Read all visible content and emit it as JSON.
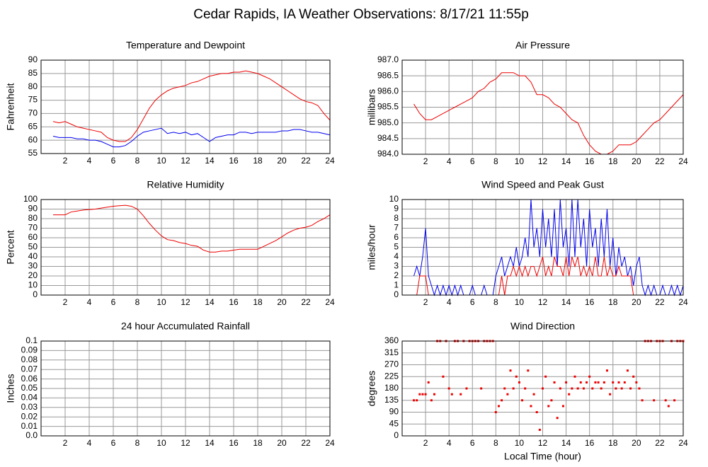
{
  "title": "Cedar Rapids, IA Weather Observations: 8/17/21 11:55p",
  "chart_data": [
    {
      "type": "line",
      "title": "Temperature and Dewpoint",
      "ylabel": "Fahrenheit",
      "x": [
        1,
        1.5,
        2,
        2.5,
        3,
        3.5,
        4,
        4.5,
        5,
        5.5,
        6,
        6.5,
        7,
        7.5,
        8,
        8.5,
        9,
        9.5,
        10,
        10.5,
        11,
        11.5,
        12,
        12.5,
        13,
        13.5,
        14,
        14.5,
        15,
        15.5,
        16,
        16.5,
        17,
        17.5,
        18,
        18.5,
        19,
        19.5,
        20,
        20.5,
        21,
        21.5,
        22,
        22.5,
        23,
        23.5,
        24
      ],
      "series": [
        {
          "color": "#ee0000",
          "values": [
            67,
            66.5,
            67,
            66,
            65,
            64.5,
            64,
            63.5,
            63,
            61,
            60,
            59.5,
            59.5,
            61,
            64,
            68,
            72,
            75,
            77,
            78.5,
            79.5,
            80,
            80.5,
            81.5,
            82,
            83,
            84,
            84.5,
            85,
            85,
            85.5,
            85.5,
            86,
            85.5,
            85,
            84,
            83,
            81.5,
            80,
            78.5,
            77,
            75.5,
            74.5,
            74,
            73,
            70,
            67.5
          ]
        },
        {
          "color": "#0000ee",
          "values": [
            61.5,
            61,
            61,
            61,
            60.5,
            60.5,
            60,
            60,
            59.5,
            58.5,
            57.5,
            57.5,
            58,
            59.5,
            61.5,
            63,
            63.5,
            64,
            64.5,
            62.5,
            63,
            62.5,
            63,
            62,
            62.5,
            61,
            59.5,
            61,
            61.5,
            62,
            62,
            63,
            63,
            62.5,
            63,
            63,
            63,
            63,
            63.5,
            63.5,
            64,
            64,
            63.5,
            63,
            63,
            62.5,
            62
          ]
        }
      ],
      "xlim": [
        0,
        24
      ],
      "xticks": [
        2,
        4,
        6,
        8,
        10,
        12,
        14,
        16,
        18,
        20,
        22,
        24
      ],
      "ylim": [
        55,
        90
      ],
      "yticks": [
        55,
        60,
        65,
        70,
        75,
        80,
        85,
        90
      ],
      "grid": true
    },
    {
      "type": "line",
      "title": "Air Pressure",
      "ylabel": "millibars",
      "x": [
        1,
        1.5,
        2,
        2.5,
        3,
        3.5,
        4,
        4.5,
        5,
        5.5,
        6,
        6.5,
        7,
        7.5,
        8,
        8.5,
        9,
        9.5,
        10,
        10.5,
        11,
        11.5,
        12,
        12.5,
        13,
        13.5,
        14,
        14.5,
        15,
        15.5,
        16,
        16.5,
        17,
        17.5,
        18,
        18.5,
        19,
        19.5,
        20,
        20.5,
        21,
        21.5,
        22,
        22.5,
        23,
        23.5,
        24
      ],
      "series": [
        {
          "color": "#ee0000",
          "values": [
            985.6,
            985.3,
            985.1,
            985.1,
            985.2,
            985.3,
            985.4,
            985.5,
            985.6,
            985.7,
            985.8,
            986.0,
            986.1,
            986.3,
            986.4,
            986.6,
            986.6,
            986.6,
            986.5,
            986.5,
            986.3,
            985.9,
            985.9,
            985.8,
            985.6,
            985.5,
            985.3,
            985.1,
            985.0,
            984.6,
            984.3,
            984.1,
            984.0,
            984.0,
            984.1,
            984.3,
            984.3,
            984.3,
            984.4,
            984.6,
            984.8,
            985.0,
            985.1,
            985.3,
            985.5,
            985.7,
            985.9
          ]
        }
      ],
      "xlim": [
        0,
        24
      ],
      "xticks": [
        2,
        4,
        6,
        8,
        10,
        12,
        14,
        16,
        18,
        20,
        22,
        24
      ],
      "ylim": [
        984,
        987
      ],
      "yticks": [
        {
          "value": 984,
          "label": "984.0"
        },
        984.5,
        {
          "value": 985,
          "label": "985.0"
        },
        985.5,
        {
          "value": 986,
          "label": "986.0"
        },
        986.5,
        {
          "value": 987,
          "label": "987.0"
        }
      ],
      "grid": true
    },
    {
      "type": "line",
      "title": "Relative Humidity",
      "ylabel": "Percent",
      "x": [
        1,
        1.5,
        2,
        2.5,
        3,
        3.5,
        4,
        4.5,
        5,
        5.5,
        6,
        6.5,
        7,
        7.5,
        8,
        8.5,
        9,
        9.5,
        10,
        10.5,
        11,
        11.5,
        12,
        12.5,
        13,
        13.5,
        14,
        14.5,
        15,
        15.5,
        16,
        16.5,
        17,
        17.5,
        18,
        18.5,
        19,
        19.5,
        20,
        20.5,
        21,
        21.5,
        22,
        22.5,
        23,
        23.5,
        24
      ],
      "series": [
        {
          "color": "#ee0000",
          "values": [
            84,
            84,
            84,
            87,
            88,
            89,
            89.5,
            90,
            91,
            92,
            93,
            93.5,
            94,
            93,
            90,
            83,
            75,
            68,
            62,
            58,
            57,
            55,
            54,
            52,
            51,
            47,
            45,
            45,
            46,
            46,
            47,
            48,
            48,
            48,
            48,
            51,
            54,
            57,
            61,
            65,
            68,
            70,
            71,
            73,
            77,
            80,
            84
          ]
        }
      ],
      "xlim": [
        0,
        24
      ],
      "xticks": [
        2,
        4,
        6,
        8,
        10,
        12,
        14,
        16,
        18,
        20,
        22,
        24
      ],
      "ylim": [
        0,
        100
      ],
      "yticks": [
        0,
        10,
        20,
        30,
        40,
        50,
        60,
        70,
        80,
        90,
        100
      ],
      "grid": true
    },
    {
      "type": "line",
      "title": "Wind Speed and Peak Gust",
      "ylabel": "miles/hour",
      "x": [
        1,
        1.25,
        1.5,
        1.75,
        2,
        2.25,
        2.5,
        2.75,
        3,
        3.25,
        3.5,
        3.75,
        4,
        4.25,
        4.5,
        4.75,
        5,
        5.25,
        5.5,
        5.75,
        6,
        6.25,
        6.5,
        6.75,
        7,
        7.25,
        7.5,
        7.75,
        8,
        8.25,
        8.5,
        8.75,
        9,
        9.25,
        9.5,
        9.75,
        10,
        10.25,
        10.5,
        10.75,
        11,
        11.25,
        11.5,
        11.75,
        12,
        12.25,
        12.5,
        12.75,
        13,
        13.25,
        13.5,
        13.75,
        14,
        14.25,
        14.5,
        14.75,
        15,
        15.25,
        15.5,
        15.75,
        16,
        16.25,
        16.5,
        16.75,
        17,
        17.25,
        17.5,
        17.75,
        18,
        18.25,
        18.5,
        18.75,
        19,
        19.25,
        19.5,
        19.75,
        20,
        20.25,
        20.5,
        20.75,
        21,
        21.25,
        21.5,
        21.75,
        22,
        22.25,
        22.5,
        22.75,
        23,
        23.25,
        23.5,
        23.75,
        24
      ],
      "series": [
        {
          "color": "#0000ee",
          "values": [
            2,
            3,
            2,
            4,
            7,
            2,
            1,
            0,
            1,
            0,
            1,
            0,
            1,
            0,
            1,
            0,
            1,
            0,
            0,
            0,
            1,
            0,
            0,
            0,
            1,
            0,
            0,
            0,
            2,
            3,
            4,
            2,
            3,
            4,
            3,
            5,
            3,
            4,
            6,
            4,
            10,
            5,
            7,
            4,
            9,
            5,
            8,
            4,
            9,
            3,
            10,
            5,
            7,
            3,
            10,
            4,
            10,
            5,
            8,
            3,
            9,
            5,
            7,
            3,
            8,
            4,
            9,
            3,
            6,
            2,
            5,
            3,
            4,
            2,
            3,
            1,
            3,
            4,
            1,
            0,
            1,
            0,
            1,
            0,
            0,
            1,
            0,
            0,
            1,
            0,
            1,
            0,
            1
          ]
        },
        {
          "color": "#ee0000",
          "values": [
            0,
            0,
            2,
            2,
            2,
            0,
            0,
            0,
            0,
            0,
            0,
            0,
            0,
            0,
            0,
            0,
            0,
            0,
            0,
            0,
            0,
            0,
            0,
            0,
            0,
            0,
            0,
            0,
            0,
            0,
            2,
            0,
            2,
            2,
            3,
            2,
            3,
            2,
            3,
            2,
            3,
            3,
            2,
            3,
            4,
            2,
            3,
            2,
            4,
            3,
            3,
            2,
            4,
            2,
            4,
            3,
            4,
            2,
            3,
            2,
            3,
            2,
            4,
            2,
            2,
            4,
            2,
            3,
            2,
            2,
            3,
            2,
            2,
            2,
            2,
            0,
            0,
            0,
            0,
            0,
            0,
            0,
            0,
            0,
            0,
            0,
            0,
            0,
            0,
            0,
            0,
            0,
            0
          ]
        }
      ],
      "xlim": [
        0,
        24
      ],
      "xticks": [
        2,
        4,
        6,
        8,
        10,
        12,
        14,
        16,
        18,
        20,
        22,
        24
      ],
      "ylim": [
        0,
        10
      ],
      "yticks": [
        0,
        1,
        2,
        3,
        4,
        5,
        6,
        7,
        8,
        9,
        10
      ],
      "grid": true
    },
    {
      "type": "line",
      "title": "24 hour Accumulated Rainfall",
      "ylabel": "Inches",
      "x": [
        1,
        24
      ],
      "series": [
        {
          "color": "#ee0000",
          "values": [
            0,
            0
          ]
        }
      ],
      "xlim": [
        0,
        24
      ],
      "xticks": [
        2,
        4,
        6,
        8,
        10,
        12,
        14,
        16,
        18,
        20,
        22,
        24
      ],
      "ylim": [
        0,
        0.1
      ],
      "yticks": [
        {
          "value": 0,
          "label": "0.0"
        },
        0.01,
        0.02,
        0.03,
        0.04,
        0.05,
        0.06,
        0.07,
        0.08,
        0.09,
        0.1
      ],
      "grid": true
    },
    {
      "type": "scatter",
      "title": "Wind Direction",
      "ylabel": "degrees",
      "xlabel": "Local Time (hour)",
      "x": [
        1,
        1.25,
        1.5,
        1.75,
        2,
        2.25,
        2.5,
        2.75,
        3,
        3.25,
        3.5,
        3.75,
        4,
        4.25,
        4.5,
        4.75,
        5,
        5.25,
        5.5,
        5.75,
        6,
        6.25,
        6.5,
        6.75,
        7,
        7.25,
        7.5,
        7.75,
        8,
        8.25,
        8.5,
        8.75,
        9,
        9.25,
        9.5,
        9.75,
        10,
        10.25,
        10.5,
        10.75,
        11,
        11.25,
        11.5,
        11.75,
        12,
        12.25,
        12.5,
        12.75,
        13,
        13.25,
        13.5,
        13.75,
        14,
        14.25,
        14.5,
        14.75,
        15,
        15.25,
        15.5,
        15.75,
        16,
        16.25,
        16.5,
        16.75,
        17,
        17.25,
        17.5,
        17.75,
        18,
        18.25,
        18.5,
        18.75,
        19,
        19.25,
        19.5,
        19.75,
        20,
        20.25,
        20.5,
        20.75,
        21,
        21.25,
        21.5,
        21.75,
        22,
        22.25,
        22.5,
        22.75,
        23,
        23.25,
        23.5,
        23.75,
        24
      ],
      "series": [
        {
          "color": "#ee0000",
          "values": [
            135,
            135,
            158,
            158,
            158,
            203,
            135,
            158,
            360,
            360,
            225,
            360,
            180,
            158,
            360,
            360,
            158,
            360,
            180,
            360,
            360,
            360,
            360,
            180,
            360,
            360,
            360,
            360,
            90,
            113,
            135,
            180,
            158,
            248,
            180,
            225,
            203,
            135,
            180,
            248,
            113,
            158,
            90,
            23,
            180,
            225,
            113,
            135,
            203,
            68,
            180,
            113,
            203,
            158,
            180,
            225,
            180,
            203,
            180,
            203,
            225,
            180,
            203,
            203,
            180,
            203,
            248,
            158,
            203,
            180,
            203,
            180,
            203,
            248,
            180,
            225,
            203,
            180,
            135,
            360,
            360,
            360,
            135,
            360,
            360,
            360,
            135,
            113,
            360,
            135,
            360,
            360,
            360
          ]
        }
      ],
      "xlim": [
        0,
        24
      ],
      "xticks": [
        2,
        4,
        6,
        8,
        10,
        12,
        14,
        16,
        18,
        20,
        22,
        24
      ],
      "ylim": [
        0,
        360
      ],
      "yticks": [
        0,
        45,
        90,
        135,
        180,
        225,
        270,
        315,
        360
      ],
      "grid": true
    }
  ]
}
